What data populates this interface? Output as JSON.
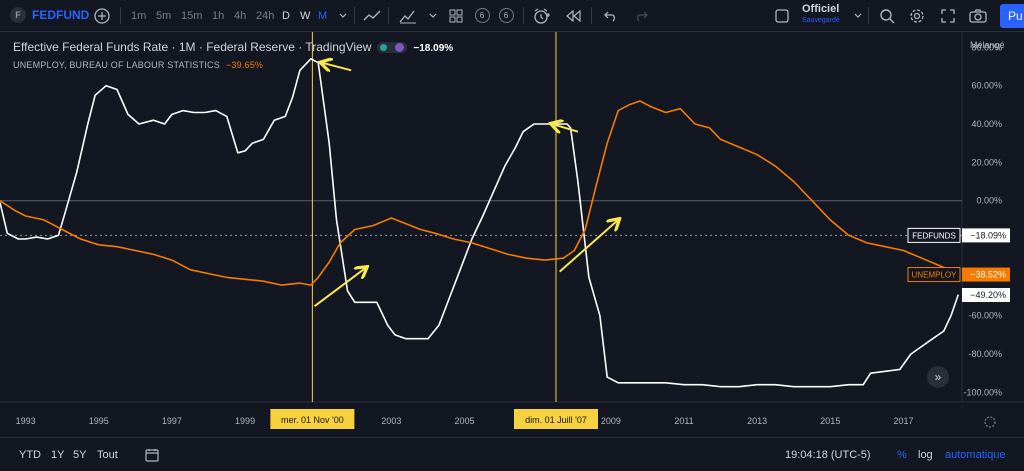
{
  "toolbar": {
    "symbol": "FEDFUND",
    "intervals": [
      "1m",
      "5m",
      "15m",
      "1h",
      "4h",
      "24h",
      "D",
      "W",
      "M"
    ],
    "active_interval": "M",
    "indicator_counts": [
      "6",
      "6"
    ],
    "save_title": "Officiel",
    "save_status": "Sauvegardé",
    "publish_label": "Pu"
  },
  "legend": {
    "title": "Effective Federal Funds Rate · 1M · Federal Reserve · TradingView",
    "fed_value": "−18.09%",
    "unemploy_title": "UNEMPLOY, BUREAU OF LABOUR STATISTICS",
    "unemploy_value": "−39.65%",
    "scale_mode": "Mélangé"
  },
  "colors": {
    "background": "#131722",
    "fedfunds": "#ffffff",
    "unemploy": "#f57c00",
    "crosshair": "#f7d23e",
    "annotation": "#f7e84e",
    "accent": "#2962ff"
  },
  "chart_data": {
    "type": "line",
    "y_unit": "%",
    "ylim": [
      -105,
      88
    ],
    "xlim": [
      1992.3,
      2018.6
    ],
    "y_ticks": [
      "80.00%",
      "60.00%",
      "40.00%",
      "20.00%",
      "0.00%",
      "-20.00%",
      "-40.00%",
      "-60.00%",
      "-80.00%",
      "-100.00%"
    ],
    "y_tick_values": [
      80,
      60,
      40,
      20,
      0,
      -20,
      -40,
      -60,
      -80,
      -100
    ],
    "x_ticks": [
      "1993",
      "1995",
      "1997",
      "1999",
      "2001",
      "2003",
      "2005",
      "2007",
      "2009",
      "2011",
      "2013",
      "2015",
      "2017"
    ],
    "x_tick_values": [
      1993,
      1995,
      1997,
      1999,
      2001,
      2003,
      2005,
      2007,
      2009,
      2011,
      2013,
      2015,
      2017
    ],
    "series": [
      {
        "name": "FEDFUNDS",
        "x": [
          1992.3,
          1992.5,
          1992.8,
          1993.0,
          1993.3,
          1993.6,
          1993.9,
          1994.1,
          1994.4,
          1994.7,
          1994.9,
          1995.2,
          1995.5,
          1995.8,
          1996.1,
          1996.5,
          1996.8,
          1997.0,
          1997.3,
          1997.6,
          1997.9,
          1998.2,
          1998.5,
          1998.8,
          1999.0,
          1999.2,
          1999.5,
          1999.8,
          2000.1,
          2000.3,
          2000.5,
          2000.8,
          2001.0,
          2001.3,
          2001.5,
          2001.8,
          2002.0,
          2002.3,
          2002.6,
          2002.9,
          2003.1,
          2003.4,
          2003.7,
          2004.0,
          2004.3,
          2004.6,
          2004.9,
          2005.2,
          2005.5,
          2005.8,
          2006.1,
          2006.4,
          2006.6,
          2006.9,
          2007.2,
          2007.5,
          2007.8,
          2007.9,
          2008.1,
          2008.4,
          2008.7,
          2008.9,
          2009.2,
          2009.6,
          2010.0,
          2010.5,
          2011.0,
          2011.5,
          2012.0,
          2012.5,
          2013.0,
          2013.5,
          2014.0,
          2014.5,
          2015.0,
          2015.5,
          2015.9,
          2016.1,
          2016.5,
          2016.9,
          2017.2,
          2017.5,
          2017.8,
          2018.1,
          2018.3,
          2018.5
        ],
        "y": [
          -1,
          -17,
          -20,
          -20,
          -19,
          -20,
          -18,
          -5,
          15,
          40,
          55,
          60,
          58,
          45,
          40,
          42,
          40,
          45,
          47,
          46,
          46,
          47,
          44,
          25,
          26,
          30,
          32,
          42,
          44,
          54,
          68,
          74,
          72,
          30,
          -10,
          -47,
          -53,
          -53,
          -53,
          -65,
          -70,
          -72,
          -72,
          -72,
          -65,
          -50,
          -35,
          -20,
          -8,
          5,
          18,
          28,
          36,
          40,
          40,
          40,
          40,
          38,
          10,
          -40,
          -60,
          -92,
          -95,
          -95,
          -95,
          -95,
          -96,
          -96,
          -97,
          -97,
          -96,
          -96,
          -97,
          -97,
          -97,
          -96,
          -96,
          -90,
          -89,
          -88,
          -80,
          -76,
          -72,
          -68,
          -60,
          -49
        ]
      },
      {
        "name": "UNEMPLOY",
        "x": [
          1992.3,
          1992.7,
          1993.0,
          1993.5,
          1994.0,
          1994.5,
          1995.0,
          1995.5,
          1996.0,
          1996.5,
          1997.0,
          1997.5,
          1998.0,
          1998.5,
          1999.0,
          1999.5,
          2000.0,
          2000.5,
          2000.8,
          2001.0,
          2001.3,
          2001.6,
          2002.0,
          2002.5,
          2003.0,
          2003.4,
          2003.8,
          2004.2,
          2004.7,
          2005.2,
          2005.7,
          2006.2,
          2006.7,
          2007.2,
          2007.7,
          2008.0,
          2008.3,
          2008.6,
          2008.9,
          2009.2,
          2009.5,
          2009.8,
          2010.1,
          2010.5,
          2010.9,
          2011.3,
          2011.7,
          2012.0,
          2012.5,
          2013.0,
          2013.5,
          2014.0,
          2014.5,
          2015.0,
          2015.5,
          2016.0,
          2016.5,
          2017.0,
          2017.5,
          2018.0,
          2018.5
        ],
        "y": [
          0,
          -5,
          -8,
          -10,
          -15,
          -20,
          -23,
          -24,
          -26,
          -28,
          -31,
          -36,
          -38,
          -40,
          -41,
          -42,
          -44,
          -43,
          -44,
          -40,
          -32,
          -22,
          -15,
          -13,
          -9,
          -12,
          -15,
          -17,
          -20,
          -22,
          -25,
          -28,
          -30,
          -31,
          -30,
          -26,
          -15,
          8,
          30,
          47,
          50,
          52,
          49,
          46,
          48,
          40,
          38,
          32,
          28,
          24,
          18,
          10,
          0,
          -10,
          -18,
          -22,
          -24,
          -26,
          -30,
          -34,
          -38
        ]
      }
    ],
    "markers": [
      {
        "x": 2000.84,
        "label": "mer. 01 Nov '00"
      },
      {
        "x": 2007.5,
        "label": "dim. 01 Juill '07"
      }
    ],
    "price_labels": [
      {
        "series": "FEDFUNDS",
        "label": "FEDFUNDS",
        "value": "−18.09%",
        "y": -18.09
      },
      {
        "series": "UNEMPLOY",
        "label": "UNEMPLOY",
        "value": "−38.52%",
        "y": -38.52
      },
      {
        "series": "FEDFUNDS",
        "label": "",
        "value": "−49.20%",
        "y": -49.2
      }
    ],
    "grid": false
  },
  "bottombar": {
    "ranges": [
      "YTD",
      "1Y",
      "5Y",
      "Tout"
    ],
    "time": "19:04:18 (UTC-5)",
    "percent": "%",
    "log": "log",
    "auto": "automatique"
  }
}
